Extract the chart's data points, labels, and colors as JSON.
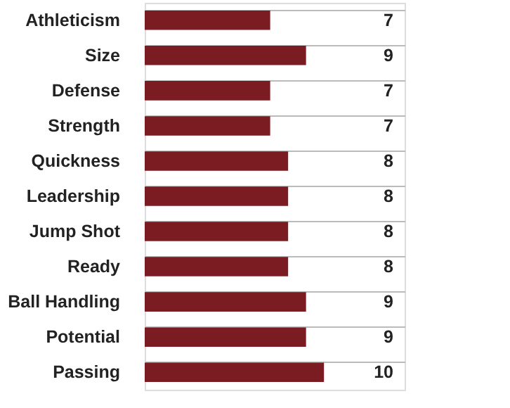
{
  "chart_data": {
    "type": "bar",
    "orientation": "horizontal",
    "categories": [
      "Athleticism",
      "Size",
      "Defense",
      "Strength",
      "Quickness",
      "Leadership",
      "Jump Shot",
      "Ready",
      "Ball Handling",
      "Potential",
      "Passing"
    ],
    "values": [
      7,
      9,
      7,
      7,
      8,
      8,
      8,
      8,
      9,
      9,
      10
    ],
    "color": "#7b1c22",
    "data_labels": true,
    "grid": "y"
  }
}
